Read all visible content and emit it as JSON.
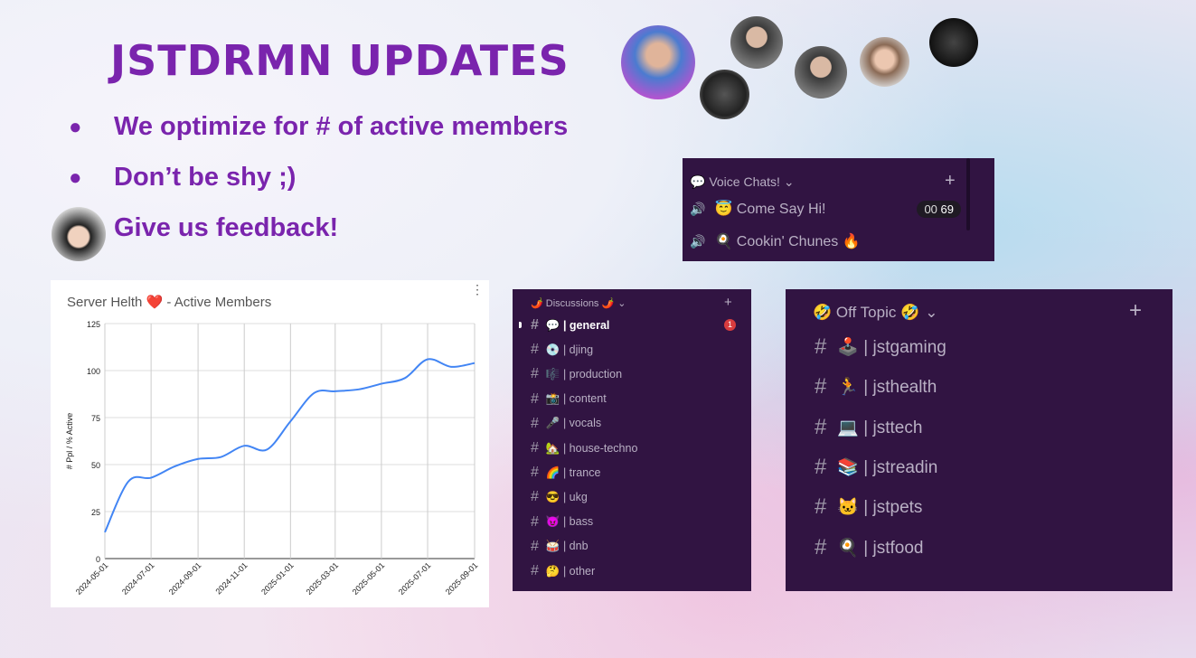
{
  "title": "JSTDRMN UPDATES",
  "bullets": [
    "We optimize for # of active members",
    "Don’t be shy ;)",
    "Give us feedback!"
  ],
  "chart_data": {
    "type": "line",
    "title": "Server Helth ❤️ - Active Members",
    "xlabel": "",
    "ylabel": "# Ppl / % Active",
    "ylim": [
      0,
      125
    ],
    "yticks": [
      0,
      25,
      50,
      75,
      100,
      125
    ],
    "xticks": [
      "2024-05-01",
      "2024-07-01",
      "2024-09-01",
      "2024-11-01",
      "2025-01-01",
      "2025-03-01",
      "2025-05-01",
      "2025-07-01",
      "2025-09-01"
    ],
    "x": [
      "2024-05-01",
      "2024-06-01",
      "2024-07-01",
      "2024-08-01",
      "2024-09-01",
      "2024-10-01",
      "2024-11-01",
      "2024-12-01",
      "2025-01-01",
      "2025-02-01",
      "2025-03-01",
      "2025-04-01",
      "2025-05-01",
      "2025-06-01",
      "2025-07-01",
      "2025-08-01",
      "2025-09-01"
    ],
    "values": [
      14,
      41,
      43,
      49,
      53,
      54,
      60,
      58,
      73,
      88,
      89,
      90,
      93,
      96,
      106,
      102,
      104
    ],
    "color": "#4285f4",
    "grid": true
  },
  "voice": {
    "header": "💬 Voice Chats!",
    "channels": [
      {
        "name": "😇 Come Say Hi!",
        "count_left": "00",
        "count_right": "69"
      },
      {
        "name": "🍳 Cookin' Chunes 🔥"
      }
    ]
  },
  "discussions": {
    "header": "🌶️ Discussions 🌶️",
    "badge": "1",
    "channels": [
      "💬 | general",
      "💿 | djing",
      "🎼 | production",
      "📸 | content",
      "🎤 | vocals",
      "🏡 | house-techno",
      "🌈 | trance",
      "😎 | ukg",
      "😈 | bass",
      "🥁 | dnb",
      "🤔 | other"
    ]
  },
  "offtopic": {
    "header": "🤣 Off Topic 🤣",
    "channels": [
      "🕹️ | jstgaming",
      "🏃 | jsthealth",
      "💻 | jsttech",
      "📚 | jstreadin",
      "🐱 | jstpets",
      "🍳 | jstfood"
    ]
  },
  "icons": {
    "hash": "#",
    "plus": "+",
    "chevron": "⌄",
    "speaker": "🔊",
    "menu": "⋮"
  }
}
